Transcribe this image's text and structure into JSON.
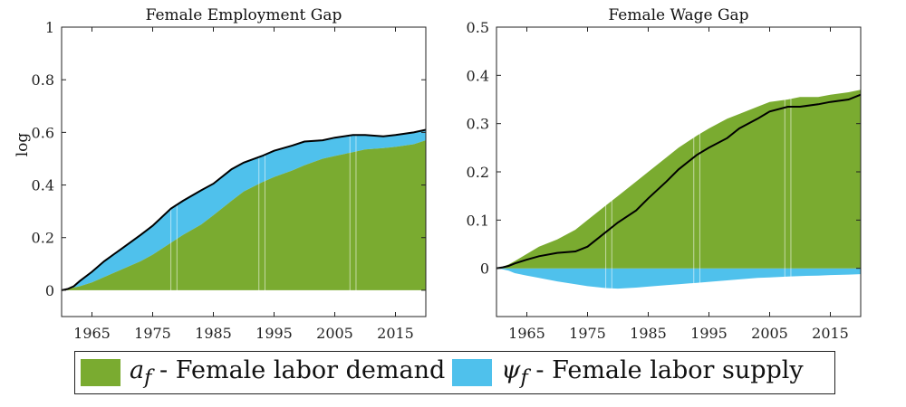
{
  "colors": {
    "demand": "#7aab30",
    "supply": "#4fc1ec",
    "total_line": "#000000"
  },
  "legend": {
    "position": "bottom",
    "items": [
      {
        "symbol": "a",
        "subscript": "f",
        "label": "- Female labor demand",
        "color": "#7aab30"
      },
      {
        "symbol": "ψ",
        "subscript": "f",
        "label": "- Female labor supply",
        "color": "#4fc1ec"
      }
    ]
  },
  "chart_data": [
    {
      "type": "area",
      "title": "Female Employment Gap",
      "ylabel": "log",
      "xlabel": "",
      "xlim": [
        1960,
        2020
      ],
      "ylim": [
        -0.1,
        1.0
      ],
      "yticks": [
        0,
        0.2,
        0.4,
        0.6,
        0.8,
        1
      ],
      "ytick_labels": [
        "0",
        "0.2",
        "0.4",
        "0.6",
        "0.8",
        "1"
      ],
      "xticks": [
        1965,
        1975,
        1985,
        1995,
        2005,
        2015
      ],
      "x": [
        1960,
        1961,
        1962,
        1963,
        1965,
        1967,
        1970,
        1973,
        1975,
        1978,
        1980,
        1983,
        1985,
        1988,
        1990,
        1993,
        1995,
        1998,
        2000,
        2003,
        2005,
        2008,
        2010,
        2013,
        2015,
        2018,
        2020
      ],
      "series": [
        {
          "name": "a_f - Female labor demand",
          "stacked": true,
          "values": [
            0,
            0.005,
            0.01,
            0.015,
            0.03,
            0.05,
            0.08,
            0.11,
            0.135,
            0.18,
            0.21,
            0.25,
            0.285,
            0.34,
            0.375,
            0.41,
            0.43,
            0.455,
            0.475,
            0.5,
            0.51,
            0.525,
            0.535,
            0.54,
            0.545,
            0.555,
            0.57
          ]
        },
        {
          "name": "ψ_f - Female labor supply",
          "stacked": true,
          "values": [
            0,
            0.0,
            0.005,
            0.02,
            0.04,
            0.06,
            0.08,
            0.1,
            0.11,
            0.13,
            0.13,
            0.13,
            0.12,
            0.12,
            0.11,
            0.1,
            0.1,
            0.095,
            0.09,
            0.07,
            0.07,
            0.065,
            0.055,
            0.045,
            0.045,
            0.045,
            0.04
          ]
        }
      ],
      "total_line": [
        0,
        0.005,
        0.015,
        0.035,
        0.07,
        0.11,
        0.16,
        0.21,
        0.245,
        0.31,
        0.34,
        0.38,
        0.405,
        0.46,
        0.485,
        0.51,
        0.53,
        0.55,
        0.565,
        0.57,
        0.58,
        0.59,
        0.59,
        0.585,
        0.59,
        0.6,
        0.61
      ],
      "grid": false
    },
    {
      "type": "area",
      "title": "Female Wage Gap",
      "ylabel": "",
      "xlabel": "",
      "xlim": [
        1960,
        2020
      ],
      "ylim": [
        -0.1,
        0.5
      ],
      "yticks": [
        0,
        0.1,
        0.2,
        0.3,
        0.4,
        0.5
      ],
      "ytick_labels": [
        "0",
        "0.1",
        "0.2",
        "0.3",
        "0.4",
        "0.5"
      ],
      "xticks": [
        1965,
        1975,
        1985,
        1995,
        2005,
        2015
      ],
      "x": [
        1960,
        1961,
        1962,
        1963,
        1965,
        1967,
        1970,
        1973,
        1975,
        1978,
        1980,
        1983,
        1985,
        1988,
        1990,
        1993,
        1995,
        1998,
        2000,
        2003,
        2005,
        2008,
        2010,
        2013,
        2015,
        2018,
        2020
      ],
      "series": [
        {
          "name": "a_f - Female labor demand",
          "values": [
            0,
            0.003,
            0.008,
            0.015,
            0.03,
            0.045,
            0.06,
            0.08,
            0.1,
            0.13,
            0.15,
            0.18,
            0.2,
            0.23,
            0.25,
            0.275,
            0.29,
            0.31,
            0.32,
            0.335,
            0.345,
            0.35,
            0.355,
            0.355,
            0.36,
            0.365,
            0.37
          ]
        },
        {
          "name": "ψ_f - Female labor supply",
          "values": [
            0,
            -0.002,
            -0.005,
            -0.01,
            -0.015,
            -0.02,
            -0.027,
            -0.033,
            -0.037,
            -0.041,
            -0.042,
            -0.04,
            -0.038,
            -0.035,
            -0.033,
            -0.03,
            -0.028,
            -0.025,
            -0.023,
            -0.02,
            -0.019,
            -0.017,
            -0.016,
            -0.015,
            -0.014,
            -0.013,
            -0.012
          ]
        }
      ],
      "total_line": [
        0,
        0.002,
        0.005,
        0.01,
        0.018,
        0.025,
        0.032,
        0.035,
        0.045,
        0.075,
        0.095,
        0.12,
        0.145,
        0.18,
        0.205,
        0.235,
        0.25,
        0.27,
        0.29,
        0.31,
        0.325,
        0.335,
        0.335,
        0.34,
        0.345,
        0.35,
        0.36
      ],
      "grid": false
    }
  ]
}
